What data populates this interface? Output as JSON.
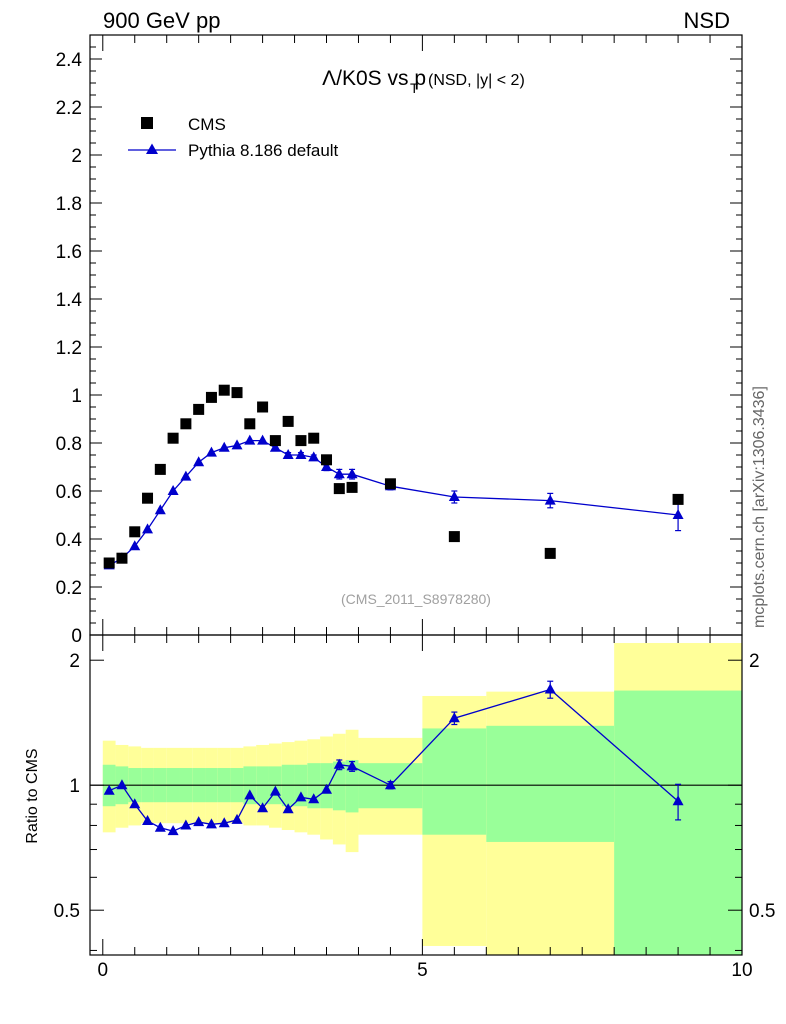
{
  "header": {
    "left": "900 GeV pp",
    "right": "NSD"
  },
  "side_label": "mcplots.cern.ch [arXiv:1306.3436]",
  "chart_data": [
    {
      "type": "scatter",
      "title": {
        "main": "Λ/K0S vs p",
        "sub": "T",
        "suffix": "(NSD, |y| < 2)"
      },
      "watermark": "(CMS_2011_S8978280)",
      "xlim": [
        -0.2,
        10
      ],
      "ylim": [
        0,
        2.5
      ],
      "y_ticks": [
        {
          "v": 0,
          "t": "0"
        },
        {
          "v": 0.2,
          "t": "0.2"
        },
        {
          "v": 0.4,
          "t": "0.4"
        },
        {
          "v": 0.6,
          "t": "0.6"
        },
        {
          "v": 0.8,
          "t": "0.8"
        },
        {
          "v": 1,
          "t": "1"
        },
        {
          "v": 1.2,
          "t": "1.2"
        },
        {
          "v": 1.4,
          "t": "1.4"
        },
        {
          "v": 1.6,
          "t": "1.6"
        },
        {
          "v": 1.8,
          "t": "1.8"
        },
        {
          "v": 2,
          "t": "2"
        },
        {
          "v": 2.2,
          "t": "2.2"
        },
        {
          "v": 2.4,
          "t": "2.4"
        }
      ],
      "legend": [
        {
          "label": "CMS",
          "marker": "square",
          "color": "#000000"
        },
        {
          "label": "Pythia 8.186 default",
          "marker": "triangle",
          "color": "#0000cc"
        }
      ],
      "series": [
        {
          "name": "CMS",
          "color": "#000000",
          "x": [
            0.1,
            0.3,
            0.5,
            0.7,
            0.9,
            1.1,
            1.3,
            1.5,
            1.7,
            1.9,
            2.1,
            2.3,
            2.5,
            2.7,
            2.9,
            3.1,
            3.3,
            3.5,
            3.7,
            3.9,
            4.5,
            5.5,
            7.0,
            9.0
          ],
          "y": [
            0.3,
            0.32,
            0.43,
            0.57,
            0.69,
            0.82,
            0.88,
            0.94,
            0.99,
            1.02,
            1.01,
            0.88,
            0.95,
            0.81,
            0.89,
            0.81,
            0.82,
            0.73,
            0.61,
            0.615,
            0.63,
            0.41,
            0.34,
            0.565
          ]
        },
        {
          "name": "Pythia 8.186 default",
          "color": "#0000cc",
          "x": [
            0.1,
            0.3,
            0.5,
            0.7,
            0.9,
            1.1,
            1.3,
            1.5,
            1.7,
            1.9,
            2.1,
            2.3,
            2.5,
            2.7,
            2.9,
            3.1,
            3.3,
            3.5,
            3.7,
            3.9,
            4.5,
            5.5,
            7.0,
            9.0
          ],
          "y": [
            0.29,
            0.32,
            0.37,
            0.44,
            0.52,
            0.6,
            0.66,
            0.72,
            0.76,
            0.78,
            0.79,
            0.81,
            0.81,
            0.78,
            0.75,
            0.75,
            0.74,
            0.7,
            0.67,
            0.67,
            0.62,
            0.575,
            0.56,
            0.5
          ],
          "err": [
            0.005,
            0.005,
            0.005,
            0.005,
            0.005,
            0.005,
            0.005,
            0.005,
            0.005,
            0.005,
            0.005,
            0.005,
            0.005,
            0.005,
            0.01,
            0.01,
            0.01,
            0.015,
            0.02,
            0.02,
            0.015,
            0.025,
            0.03,
            0.065
          ]
        }
      ]
    },
    {
      "type": "scatter",
      "ylabel": "Ratio to CMS",
      "y_scale": "log",
      "xlim": [
        -0.2,
        10
      ],
      "ylim": [
        0.39,
        2.3
      ],
      "y_ticks_left": [
        {
          "v": 0.5,
          "t": "0.5"
        },
        {
          "v": 1,
          "t": "1"
        },
        {
          "v": 2,
          "t": "2"
        }
      ],
      "y_ticks_right": [
        {
          "v": 0.5,
          "t": "0.5"
        },
        {
          "v": 2,
          "t": "2"
        }
      ],
      "x_ticks": [
        {
          "v": 0,
          "t": "0"
        },
        {
          "v": 5,
          "t": "5"
        },
        {
          "v": 10,
          "t": "10"
        }
      ],
      "reference_line": 1,
      "bands": {
        "inner_color": "#99ff99",
        "outer_color": "#ffff99",
        "bins": [
          {
            "x0": 0.0,
            "x1": 0.2,
            "g_lo": 0.89,
            "g_hi": 1.12,
            "y_lo": 0.77,
            "y_hi": 1.28
          },
          {
            "x0": 0.2,
            "x1": 0.4,
            "g_lo": 0.9,
            "g_hi": 1.11,
            "y_lo": 0.79,
            "y_hi": 1.25
          },
          {
            "x0": 0.4,
            "x1": 0.6,
            "g_lo": 0.91,
            "g_hi": 1.1,
            "y_lo": 0.8,
            "y_hi": 1.24
          },
          {
            "x0": 0.6,
            "x1": 0.8,
            "g_lo": 0.91,
            "g_hi": 1.1,
            "y_lo": 0.81,
            "y_hi": 1.23
          },
          {
            "x0": 0.8,
            "x1": 1.0,
            "g_lo": 0.91,
            "g_hi": 1.1,
            "y_lo": 0.81,
            "y_hi": 1.23
          },
          {
            "x0": 1.0,
            "x1": 1.2,
            "g_lo": 0.91,
            "g_hi": 1.1,
            "y_lo": 0.81,
            "y_hi": 1.23
          },
          {
            "x0": 1.2,
            "x1": 1.4,
            "g_lo": 0.91,
            "g_hi": 1.1,
            "y_lo": 0.81,
            "y_hi": 1.23
          },
          {
            "x0": 1.4,
            "x1": 1.6,
            "g_lo": 0.91,
            "g_hi": 1.1,
            "y_lo": 0.81,
            "y_hi": 1.23
          },
          {
            "x0": 1.6,
            "x1": 1.8,
            "g_lo": 0.91,
            "g_hi": 1.1,
            "y_lo": 0.81,
            "y_hi": 1.23
          },
          {
            "x0": 1.8,
            "x1": 2.0,
            "g_lo": 0.91,
            "g_hi": 1.1,
            "y_lo": 0.81,
            "y_hi": 1.23
          },
          {
            "x0": 2.0,
            "x1": 2.2,
            "g_lo": 0.91,
            "g_hi": 1.1,
            "y_lo": 0.81,
            "y_hi": 1.23
          },
          {
            "x0": 2.2,
            "x1": 2.4,
            "g_lo": 0.9,
            "g_hi": 1.11,
            "y_lo": 0.8,
            "y_hi": 1.24
          },
          {
            "x0": 2.4,
            "x1": 2.6,
            "g_lo": 0.9,
            "g_hi": 1.11,
            "y_lo": 0.8,
            "y_hi": 1.25
          },
          {
            "x0": 2.6,
            "x1": 2.8,
            "g_lo": 0.9,
            "g_hi": 1.11,
            "y_lo": 0.79,
            "y_hi": 1.26
          },
          {
            "x0": 2.8,
            "x1": 3.0,
            "g_lo": 0.89,
            "g_hi": 1.12,
            "y_lo": 0.78,
            "y_hi": 1.27
          },
          {
            "x0": 3.0,
            "x1": 3.2,
            "g_lo": 0.89,
            "g_hi": 1.12,
            "y_lo": 0.77,
            "y_hi": 1.28
          },
          {
            "x0": 3.2,
            "x1": 3.4,
            "g_lo": 0.88,
            "g_hi": 1.13,
            "y_lo": 0.76,
            "y_hi": 1.29
          },
          {
            "x0": 3.4,
            "x1": 3.6,
            "g_lo": 0.88,
            "g_hi": 1.13,
            "y_lo": 0.74,
            "y_hi": 1.31
          },
          {
            "x0": 3.6,
            "x1": 3.8,
            "g_lo": 0.87,
            "g_hi": 1.14,
            "y_lo": 0.72,
            "y_hi": 1.33
          },
          {
            "x0": 3.8,
            "x1": 4.0,
            "g_lo": 0.86,
            "g_hi": 1.15,
            "y_lo": 0.69,
            "y_hi": 1.36
          },
          {
            "x0": 4.0,
            "x1": 5.0,
            "g_lo": 0.88,
            "g_hi": 1.13,
            "y_lo": 0.76,
            "y_hi": 1.3
          },
          {
            "x0": 5.0,
            "x1": 6.0,
            "g_lo": 0.76,
            "g_hi": 1.37,
            "y_lo": 0.41,
            "y_hi": 1.64
          },
          {
            "x0": 6.0,
            "x1": 8.0,
            "g_lo": 0.73,
            "g_hi": 1.39,
            "y_lo": 0.39,
            "y_hi": 1.68
          },
          {
            "x0": 8.0,
            "x1": 10.0,
            "g_lo": 0.39,
            "g_hi": 1.69,
            "y_lo": 0.39,
            "y_hi": 2.2
          }
        ]
      },
      "series": [
        {
          "name": "Pythia 8.186 default",
          "color": "#0000cc",
          "x": [
            0.1,
            0.3,
            0.5,
            0.7,
            0.9,
            1.1,
            1.3,
            1.5,
            1.7,
            1.9,
            2.1,
            2.3,
            2.5,
            2.7,
            2.9,
            3.1,
            3.3,
            3.5,
            3.7,
            3.9,
            4.5,
            5.5,
            7.0,
            9.0
          ],
          "y": [
            0.97,
            1.0,
            0.9,
            0.82,
            0.79,
            0.775,
            0.8,
            0.815,
            0.805,
            0.81,
            0.825,
            0.945,
            0.88,
            0.965,
            0.875,
            0.935,
            0.925,
            0.975,
            1.12,
            1.11,
            1.0,
            1.45,
            1.7,
            0.915
          ],
          "err": [
            0.005,
            0.005,
            0.005,
            0.005,
            0.005,
            0.005,
            0.005,
            0.005,
            0.005,
            0.005,
            0.005,
            0.005,
            0.005,
            0.005,
            0.01,
            0.01,
            0.01,
            0.015,
            0.03,
            0.03,
            0.02,
            0.05,
            0.08,
            0.09
          ]
        }
      ]
    }
  ]
}
